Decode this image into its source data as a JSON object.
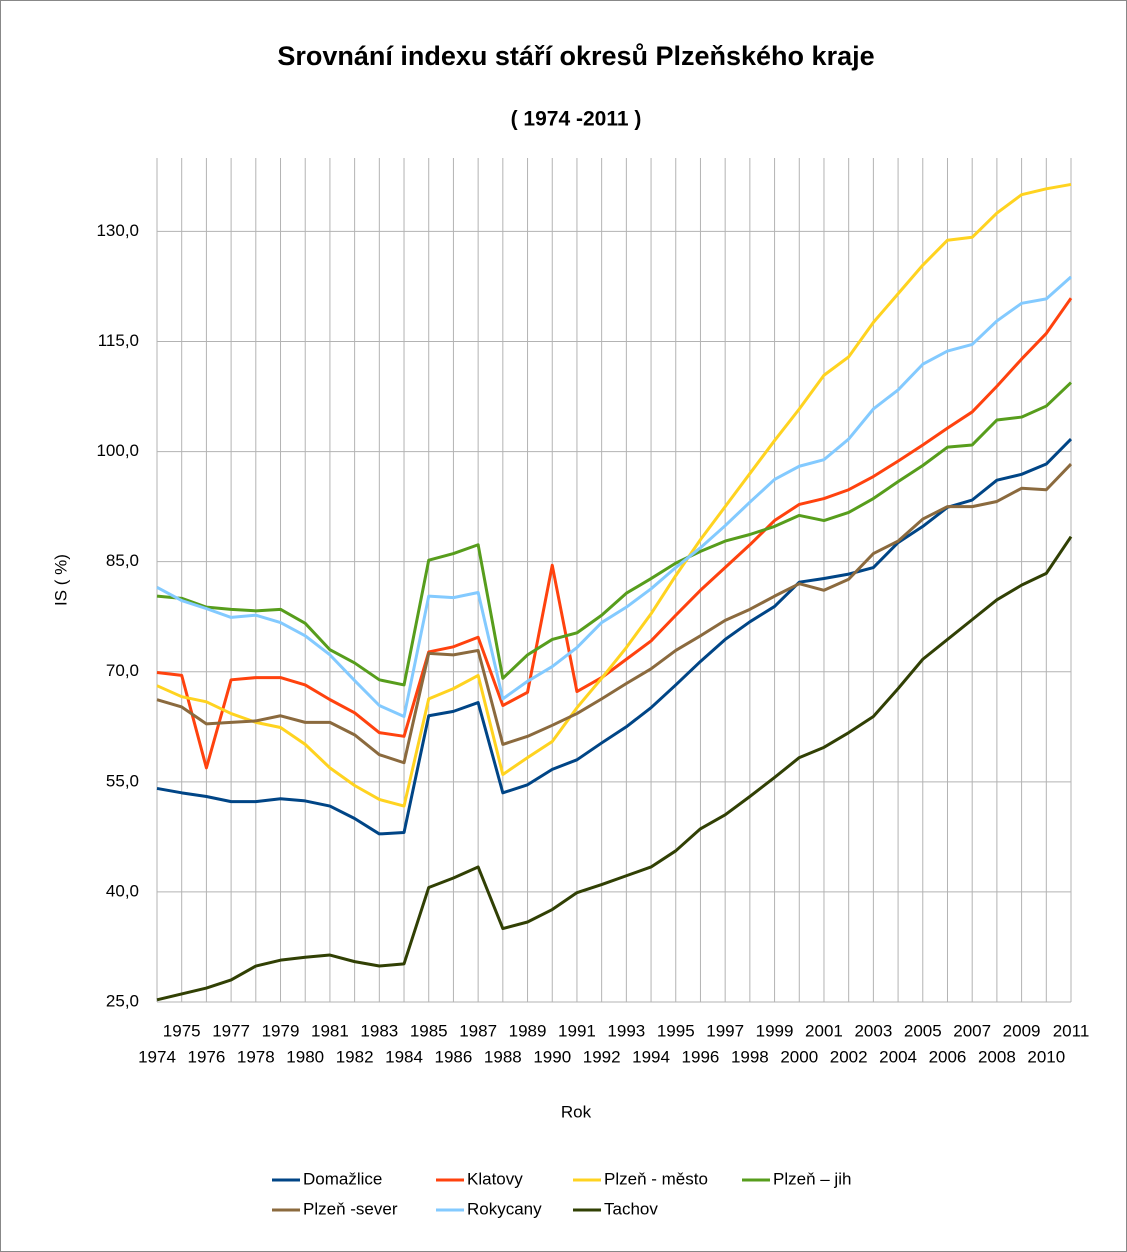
{
  "chart_data": {
    "type": "line",
    "title": "Srovnání indexu stáří okresů Plzeňského kraje",
    "subtitle": "( 1974 -2011 )",
    "x_label": "Rok",
    "y_label": "IS ( %)",
    "categories": [
      "1974",
      "1975",
      "1976",
      "1977",
      "1978",
      "1979",
      "1980",
      "1981",
      "1982",
      "1983",
      "1984",
      "1985",
      "1986",
      "1987",
      "1988",
      "1989",
      "1990",
      "1991",
      "1992",
      "1993",
      "1994",
      "1995",
      "1996",
      "1997",
      "1998",
      "1999",
      "2000",
      "2001",
      "2002",
      "2003",
      "2004",
      "2005",
      "2006",
      "2007",
      "2008",
      "2009",
      "2010",
      "2011"
    ],
    "ylim": [
      25,
      140
    ],
    "yticks": [
      {
        "value": 25,
        "label": "25,0"
      },
      {
        "value": 40,
        "label": "40,0"
      },
      {
        "value": 55,
        "label": "55,0"
      },
      {
        "value": 70,
        "label": "70,0"
      },
      {
        "value": 85,
        "label": "85,0"
      },
      {
        "value": 100,
        "label": "100,0"
      },
      {
        "value": 115,
        "label": "115,0"
      },
      {
        "value": 130,
        "label": "130,0"
      }
    ],
    "grid": true,
    "legend": "bottom",
    "series": [
      {
        "name": "Domažlice",
        "color": "#004586",
        "values": [
          54.1,
          53.5,
          53.0,
          52.3,
          52.3,
          52.7,
          52.4,
          51.7,
          50.0,
          47.9,
          48.1,
          64.0,
          64.6,
          65.8,
          53.5,
          54.6,
          56.7,
          58.0,
          60.3,
          62.5,
          65.1,
          68.2,
          71.4,
          74.4,
          76.8,
          78.9,
          82.2,
          82.7,
          83.3,
          84.2,
          87.6,
          89.8,
          92.4,
          93.4,
          96.1,
          96.9,
          98.3,
          101.7
        ]
      },
      {
        "name": "Klatovy",
        "color": "#ff420e",
        "values": [
          69.9,
          69.5,
          56.9,
          68.9,
          69.2,
          69.2,
          68.2,
          66.2,
          64.4,
          61.7,
          61.2,
          72.7,
          73.4,
          74.7,
          65.4,
          67.2,
          84.5,
          67.3,
          69.2,
          71.7,
          74.2,
          77.7,
          81.1,
          84.2,
          87.3,
          90.6,
          92.8,
          93.6,
          94.8,
          96.6,
          98.7,
          100.9,
          103.2,
          105.4,
          108.9,
          112.6,
          116.1,
          120.9
        ]
      },
      {
        "name": "Plzeň - město",
        "color": "#ffd320",
        "values": [
          68.1,
          66.6,
          65.9,
          64.3,
          63.1,
          62.4,
          60.1,
          56.9,
          54.5,
          52.6,
          51.7,
          66.3,
          67.7,
          69.5,
          56.0,
          58.3,
          60.5,
          65.1,
          69.1,
          73.3,
          77.9,
          83.1,
          88.0,
          92.5,
          97.0,
          101.5,
          105.8,
          110.4,
          112.9,
          117.6,
          121.5,
          125.4,
          128.8,
          129.2,
          132.5,
          135.0,
          135.8,
          136.4
        ]
      },
      {
        "name": "Plzeň – jih",
        "color": "#579d1c",
        "values": [
          80.3,
          80.0,
          78.8,
          78.5,
          78.3,
          78.5,
          76.6,
          73.0,
          71.2,
          68.9,
          68.2,
          85.2,
          86.1,
          87.3,
          69.1,
          72.3,
          74.4,
          75.3,
          77.7,
          80.7,
          82.7,
          84.8,
          86.4,
          87.8,
          88.7,
          89.8,
          91.3,
          90.6,
          91.7,
          93.6,
          95.9,
          98.1,
          100.6,
          100.9,
          104.3,
          104.7,
          106.2,
          109.4
        ]
      },
      {
        "name": "Plzeň -sever",
        "color": "#8b6a3e",
        "values": [
          66.2,
          65.2,
          62.9,
          63.1,
          63.3,
          64.0,
          63.1,
          63.1,
          61.4,
          58.7,
          57.6,
          72.5,
          72.3,
          72.9,
          60.1,
          61.2,
          62.7,
          64.3,
          66.3,
          68.4,
          70.4,
          72.9,
          74.9,
          77.0,
          78.5,
          80.3,
          82.0,
          81.1,
          82.6,
          86.1,
          87.8,
          90.8,
          92.5,
          92.5,
          93.2,
          95.0,
          94.8,
          98.3
        ]
      },
      {
        "name": "Rokycany",
        "color": "#83caff",
        "values": [
          81.5,
          79.7,
          78.6,
          77.4,
          77.7,
          76.7,
          74.9,
          72.3,
          68.8,
          65.4,
          63.9,
          80.3,
          80.1,
          80.8,
          66.3,
          68.7,
          70.7,
          73.3,
          76.7,
          78.8,
          81.3,
          84.2,
          86.9,
          89.9,
          93.1,
          96.2,
          98.0,
          98.9,
          101.7,
          105.8,
          108.4,
          111.9,
          113.7,
          114.6,
          117.8,
          120.2,
          120.8,
          123.8
        ]
      },
      {
        "name": "Tachov",
        "color": "#314004",
        "values": [
          25.3,
          26.1,
          26.9,
          28.0,
          29.9,
          30.7,
          31.1,
          31.4,
          30.5,
          29.9,
          30.2,
          40.6,
          41.9,
          43.4,
          35.0,
          35.9,
          37.6,
          39.9,
          41.0,
          42.2,
          43.4,
          45.6,
          48.6,
          50.5,
          53.0,
          55.6,
          58.3,
          59.7,
          61.7,
          63.9,
          67.7,
          71.7,
          74.4,
          77.1,
          79.8,
          81.8,
          83.4,
          88.4
        ]
      }
    ]
  }
}
